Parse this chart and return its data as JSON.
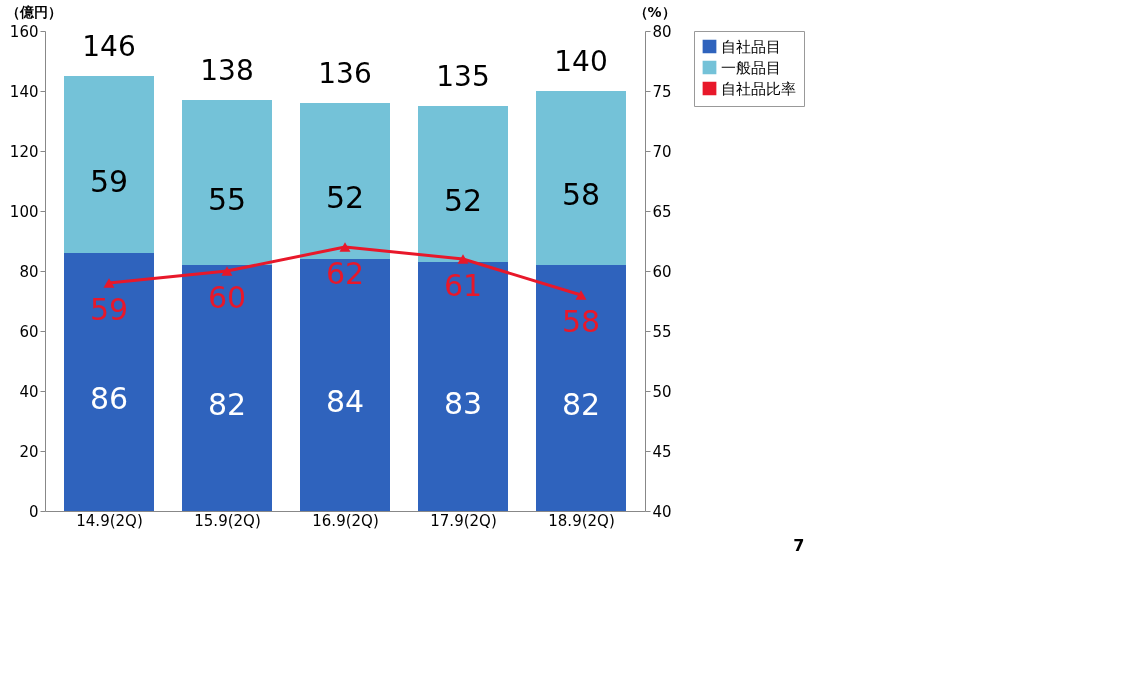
{
  "chart_data": {
    "type": "bar",
    "stacked": true,
    "ylabel": "（億円）",
    "y2label": "（%）",
    "categories": [
      "14.9(2Q)",
      "15.9(2Q)",
      "16.9(2Q)",
      "17.9(2Q)",
      "18.9(2Q)"
    ],
    "series": [
      {
        "name": "自社品目",
        "color": "#2f63bd",
        "values": [
          86,
          82,
          84,
          83,
          82
        ]
      },
      {
        "name": "一般品目",
        "color": "#74c2d8",
        "values": [
          59,
          55,
          52,
          52,
          58
        ]
      },
      {
        "name": "自社品比率",
        "type": "line",
        "axis": "y2",
        "color": "#e8182a",
        "marker": "triangle",
        "values": [
          59,
          60,
          62,
          61,
          58
        ]
      }
    ],
    "totals": [
      "146",
      "138",
      "136",
      "135",
      "140"
    ],
    "data_labels": true,
    "ylim": [
      0,
      160
    ],
    "yticks": [
      0,
      20,
      40,
      60,
      80,
      100,
      120,
      140,
      160
    ],
    "y2lim": [
      40,
      80
    ],
    "y2ticks": [
      40,
      45,
      50,
      55,
      60,
      65,
      70,
      75,
      80
    ],
    "grid": false,
    "legend": "right",
    "annotations": [
      "7"
    ]
  }
}
